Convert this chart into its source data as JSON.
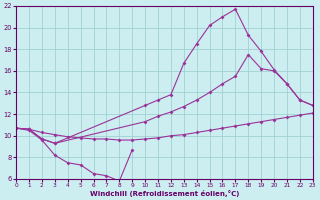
{
  "xlabel": "Windchill (Refroidissement éolien,°C)",
  "bg_color": "#cceef0",
  "grid_color": "#99cccc",
  "line_color": "#993399",
  "lineA_x": [
    0,
    1,
    2,
    3,
    10,
    11,
    12,
    13,
    14,
    15,
    16,
    17,
    18,
    19,
    20,
    21,
    22,
    23
  ],
  "lineA_y": [
    10.7,
    10.6,
    9.7,
    9.3,
    12.8,
    13.3,
    13.8,
    16.7,
    18.5,
    20.2,
    21.0,
    21.7,
    19.3,
    17.8,
    16.1,
    14.8,
    13.3,
    12.8
  ],
  "lineB_x": [
    0,
    1,
    2,
    3,
    10,
    11,
    12,
    13,
    14,
    15,
    16,
    17,
    18,
    19,
    20,
    21,
    22,
    23
  ],
  "lineB_y": [
    10.7,
    10.6,
    9.7,
    9.3,
    11.3,
    11.8,
    12.2,
    12.7,
    13.3,
    14.0,
    14.8,
    15.5,
    17.5,
    16.2,
    16.0,
    14.8,
    13.3,
    12.8
  ],
  "lineC_x": [
    0,
    1,
    2,
    3,
    4,
    5,
    6,
    7,
    8,
    9,
    10,
    11,
    12,
    13,
    14,
    15,
    16,
    17,
    18,
    19,
    20,
    21,
    22,
    23
  ],
  "lineC_y": [
    10.7,
    10.6,
    10.3,
    10.1,
    9.9,
    9.8,
    9.7,
    9.7,
    9.6,
    9.6,
    9.7,
    9.8,
    10.0,
    10.1,
    10.3,
    10.5,
    10.7,
    10.9,
    11.1,
    11.3,
    11.5,
    11.7,
    11.9,
    12.1
  ],
  "lineD_x": [
    0,
    1,
    2,
    3,
    4,
    5,
    6,
    7,
    8,
    9
  ],
  "lineD_y": [
    10.7,
    10.5,
    9.6,
    8.2,
    7.5,
    7.3,
    6.5,
    6.3,
    5.8,
    8.7
  ],
  "xlim": [
    0,
    23
  ],
  "ylim": [
    6,
    22
  ],
  "yticks": [
    6,
    8,
    10,
    12,
    14,
    16,
    18,
    20,
    22
  ],
  "xticks": [
    0,
    1,
    2,
    3,
    4,
    5,
    6,
    7,
    8,
    9,
    10,
    11,
    12,
    13,
    14,
    15,
    16,
    17,
    18,
    19,
    20,
    21,
    22,
    23
  ]
}
